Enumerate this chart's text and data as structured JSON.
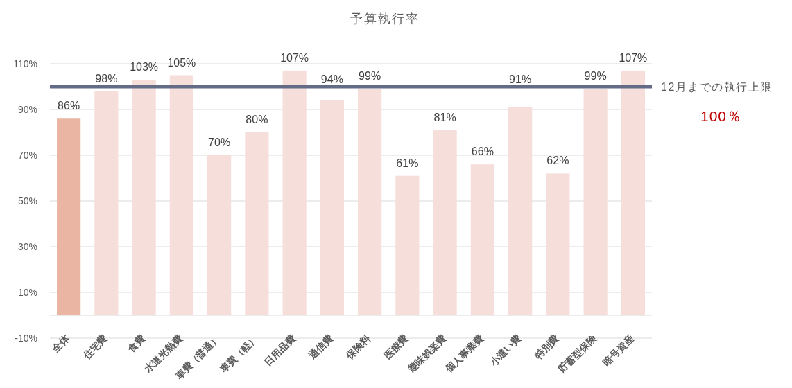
{
  "chart_data": {
    "type": "bar",
    "title": "予算執行率",
    "categories": [
      "全体",
      "住宅費",
      "食費",
      "水道光熱費",
      "車費（普通）",
      "車費（軽）",
      "日用品費",
      "通信費",
      "保険料",
      "医療費",
      "趣味娯楽費",
      "個人事業費",
      "小遣い費",
      "特別費",
      "貯蓄型保険",
      "暗号資産"
    ],
    "values": [
      86,
      98,
      103,
      105,
      70,
      80,
      107,
      94,
      99,
      61,
      81,
      66,
      91,
      62,
      99,
      107
    ],
    "colors": [
      "#ebb5a3",
      "#f6deda",
      "#f6deda",
      "#f6deda",
      "#f6deda",
      "#f6deda",
      "#f6deda",
      "#f6deda",
      "#f6deda",
      "#f6deda",
      "#f6deda",
      "#f6deda",
      "#f6deda",
      "#f6deda",
      "#f6deda",
      "#f6deda"
    ],
    "value_labels": [
      "86%",
      "98%",
      "103%",
      "105%",
      "70%",
      "80%",
      "107%",
      "94%",
      "99%",
      "61%",
      "81%",
      "66%",
      "91%",
      "62%",
      "99%",
      "107%"
    ],
    "ylim": [
      -10,
      110
    ],
    "yticks": [
      {
        "value": -10,
        "label": "-10%"
      },
      {
        "value": 10,
        "label": "10%"
      },
      {
        "value": 30,
        "label": "30%"
      },
      {
        "value": 50,
        "label": "50%"
      },
      {
        "value": 70,
        "label": "70%"
      },
      {
        "value": 90,
        "label": "90%"
      },
      {
        "value": 110,
        "label": "110%"
      }
    ],
    "grid": "y",
    "ref_lines": [
      {
        "axis": "y",
        "value": 100,
        "label": "12月までの執行上限",
        "color": "#636b87"
      }
    ],
    "annotations": [
      "100％"
    ]
  }
}
